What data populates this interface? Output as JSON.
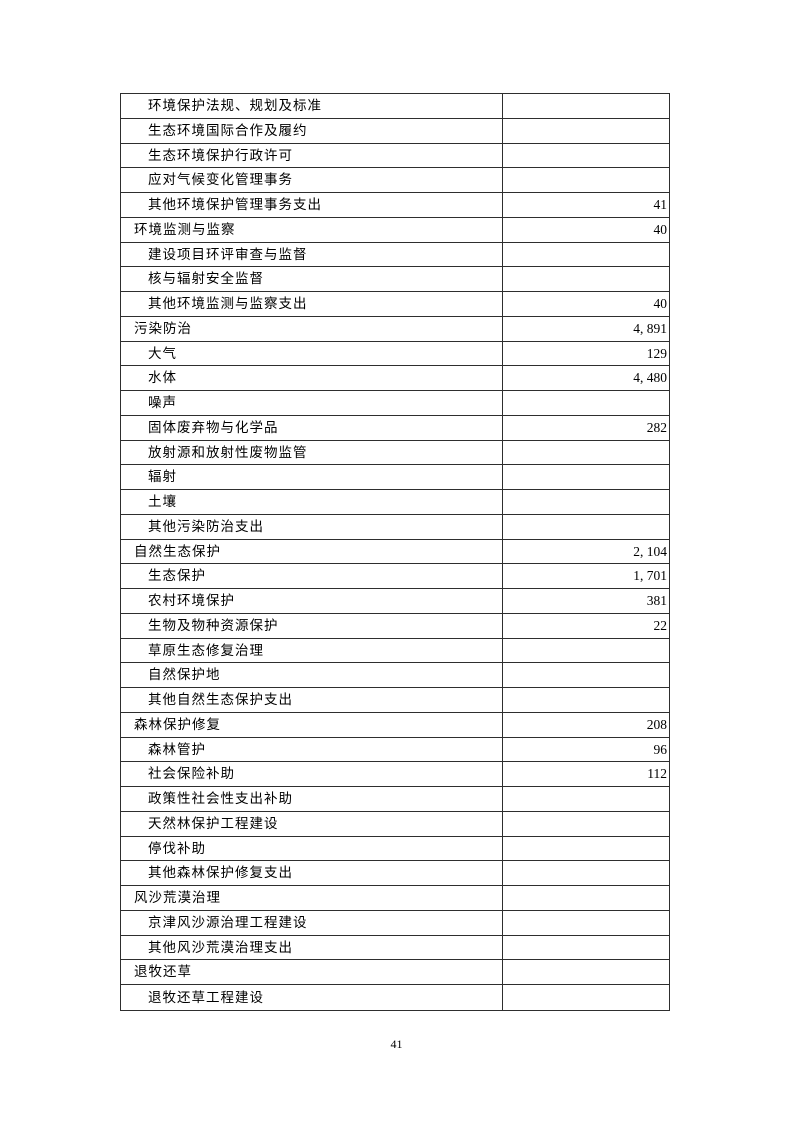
{
  "page": {
    "number": "41"
  },
  "colors": {
    "background": "#ffffff",
    "border": "#2e2e2e",
    "text": "#000000"
  },
  "table": {
    "rows": [
      {
        "label": "环境保护法规、规划及标准",
        "value": "",
        "level": 2
      },
      {
        "label": "生态环境国际合作及履约",
        "value": "",
        "level": 2
      },
      {
        "label": "生态环境保护行政许可",
        "value": "",
        "level": 2
      },
      {
        "label": "应对气候变化管理事务",
        "value": "",
        "level": 2
      },
      {
        "label": "其他环境保护管理事务支出",
        "value": "41",
        "level": 2
      },
      {
        "label": "环境监测与监察",
        "value": "40",
        "level": 1
      },
      {
        "label": "建设项目环评审查与监督",
        "value": "",
        "level": 2
      },
      {
        "label": "核与辐射安全监督",
        "value": "",
        "level": 2
      },
      {
        "label": "其他环境监测与监察支出",
        "value": "40",
        "level": 2
      },
      {
        "label": "污染防治",
        "value": "4, 891",
        "level": 1
      },
      {
        "label": "大气",
        "value": "129",
        "level": 2
      },
      {
        "label": "水体",
        "value": "4, 480",
        "level": 2
      },
      {
        "label": "噪声",
        "value": "",
        "level": 2
      },
      {
        "label": "固体废弃物与化学品",
        "value": "282",
        "level": 2
      },
      {
        "label": "放射源和放射性废物监管",
        "value": "",
        "level": 2
      },
      {
        "label": "辐射",
        "value": "",
        "level": 2
      },
      {
        "label": "土壤",
        "value": "",
        "level": 2
      },
      {
        "label": "其他污染防治支出",
        "value": "",
        "level": 2
      },
      {
        "label": "自然生态保护",
        "value": "2, 104",
        "level": 1
      },
      {
        "label": "生态保护",
        "value": "1, 701",
        "level": 2
      },
      {
        "label": "农村环境保护",
        "value": "381",
        "level": 2
      },
      {
        "label": "生物及物种资源保护",
        "value": "22",
        "level": 2
      },
      {
        "label": "草原生态修复治理",
        "value": "",
        "level": 2
      },
      {
        "label": "自然保护地",
        "value": "",
        "level": 2
      },
      {
        "label": "其他自然生态保护支出",
        "value": "",
        "level": 2
      },
      {
        "label": "森林保护修复",
        "value": "208",
        "level": 1
      },
      {
        "label": "森林管护",
        "value": "96",
        "level": 2
      },
      {
        "label": "社会保险补助",
        "value": "112",
        "level": 2
      },
      {
        "label": "政策性社会性支出补助",
        "value": "",
        "level": 2
      },
      {
        "label": "天然林保护工程建设",
        "value": "",
        "level": 2
      },
      {
        "label": "停伐补助",
        "value": "",
        "level": 2
      },
      {
        "label": "其他森林保护修复支出",
        "value": "",
        "level": 2
      },
      {
        "label": "风沙荒漠治理",
        "value": "",
        "level": 1
      },
      {
        "label": "京津风沙源治理工程建设",
        "value": "",
        "level": 2
      },
      {
        "label": "其他风沙荒漠治理支出",
        "value": "",
        "level": 2
      },
      {
        "label": "退牧还草",
        "value": "",
        "level": 1
      },
      {
        "label": "退牧还草工程建设",
        "value": "",
        "level": 2
      }
    ]
  }
}
